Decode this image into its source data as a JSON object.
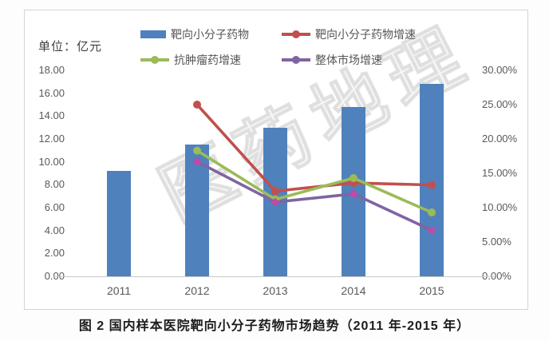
{
  "frame": {
    "unit_label": "单位：亿元",
    "caption": "图 2 国内样本医院靶向小分子药物市场趋势（2011 年-2015 年）",
    "watermark": "医药地理"
  },
  "colors": {
    "bar": "#4F81BD",
    "red": "#C0504D",
    "green": "#9BBB59",
    "purple": "#8064A2",
    "purple_marker": "#BF4AA8",
    "axis_text": "#595959",
    "axis_line": "#c9c9c9"
  },
  "chart_data": {
    "type": "bar+line combo",
    "categories": [
      "2011",
      "2012",
      "2013",
      "2014",
      "2015"
    ],
    "bar_series": {
      "name": "靶向小分子药物",
      "unit": "亿元",
      "axis": "left",
      "values": [
        9.2,
        11.5,
        13.0,
        14.8,
        16.8
      ]
    },
    "line_series": [
      {
        "name": "靶向小分子药物增速",
        "color_key": "red",
        "marker": "circle",
        "axis": "right",
        "values": [
          null,
          25.0,
          12.4,
          13.6,
          13.3
        ]
      },
      {
        "name": "抗肿瘤药增速",
        "color_key": "green",
        "marker": "circle",
        "axis": "right",
        "values": [
          null,
          18.3,
          11.2,
          14.3,
          9.3
        ]
      },
      {
        "name": "整体市场增速",
        "color_key": "purple",
        "marker": "diamond",
        "axis": "right",
        "values": [
          null,
          16.7,
          10.8,
          12.0,
          6.7
        ]
      }
    ],
    "left_axis": {
      "min": 0,
      "max": 18,
      "ticks": [
        "18.00",
        "16.00",
        "14.00",
        "12.00",
        "10.00",
        "8.00",
        "6.00",
        "4.00",
        "2.00",
        "0.00"
      ]
    },
    "right_axis": {
      "min": 0,
      "max": 30,
      "ticks": [
        "30.00%",
        "25.00%",
        "20.00%",
        "15.00%",
        "10.00%",
        "5.00%",
        "0.00%"
      ]
    },
    "legend_position": "top",
    "grid": "baseline-only"
  }
}
